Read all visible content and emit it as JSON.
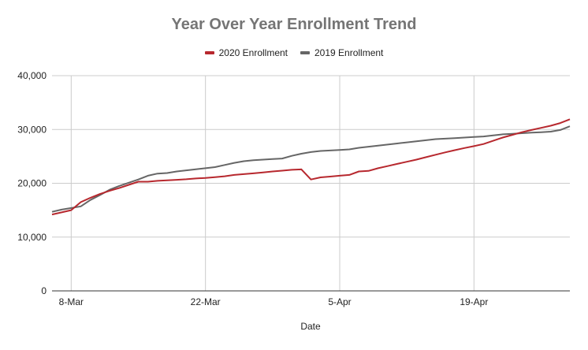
{
  "chart_data": {
    "type": "line",
    "title": "Year Over Year Enrollment Trend",
    "xlabel": "Date",
    "ylabel": "",
    "ylim": [
      0,
      40000
    ],
    "yticks": [
      0,
      10000,
      20000,
      30000,
      40000
    ],
    "ytick_labels": [
      "0",
      "10,000",
      "20,000",
      "30,000",
      "40,000"
    ],
    "xtick_labels": [
      "8-Mar",
      "22-Mar",
      "5-Apr",
      "19-Apr"
    ],
    "xtick_day_index": [
      2,
      16,
      30,
      44
    ],
    "x_start": "6-Mar",
    "x_end": "29-Apr",
    "grid": true,
    "legend_position": "top",
    "series": [
      {
        "name": "2020 Enrollment",
        "color": "#b7282e",
        "values": [
          14200,
          14600,
          15000,
          16500,
          17300,
          18000,
          18600,
          19100,
          19700,
          20300,
          20300,
          20450,
          20550,
          20650,
          20750,
          20900,
          21000,
          21150,
          21300,
          21550,
          21700,
          21850,
          22000,
          22200,
          22350,
          22500,
          22600,
          20700,
          21100,
          21250,
          21400,
          21550,
          22200,
          22300,
          22800,
          23200,
          23600,
          24000,
          24400,
          24850,
          25300,
          25750,
          26150,
          26550,
          26900,
          27300,
          27900,
          28500,
          29000,
          29500,
          29900,
          30300,
          30700,
          31200,
          31900
        ]
      },
      {
        "name": "2019 Enrollment",
        "color": "#666666",
        "values": [
          14700,
          15100,
          15400,
          15700,
          16900,
          17800,
          18800,
          19500,
          20100,
          20700,
          21400,
          21800,
          21900,
          22200,
          22400,
          22600,
          22800,
          23000,
          23400,
          23800,
          24100,
          24300,
          24400,
          24500,
          24600,
          25100,
          25500,
          25800,
          26000,
          26100,
          26200,
          26300,
          26600,
          26800,
          27000,
          27200,
          27400,
          27600,
          27800,
          28000,
          28200,
          28300,
          28400,
          28500,
          28600,
          28700,
          28900,
          29100,
          29200,
          29300,
          29400,
          29500,
          29600,
          29900,
          30600
        ]
      }
    ]
  },
  "header": {
    "title": "Year Over Year Enrollment Trend"
  },
  "legend": {
    "items": [
      {
        "label": "2020 Enrollment",
        "color": "#b7282e"
      },
      {
        "label": "2019 Enrollment",
        "color": "#666666"
      }
    ]
  }
}
